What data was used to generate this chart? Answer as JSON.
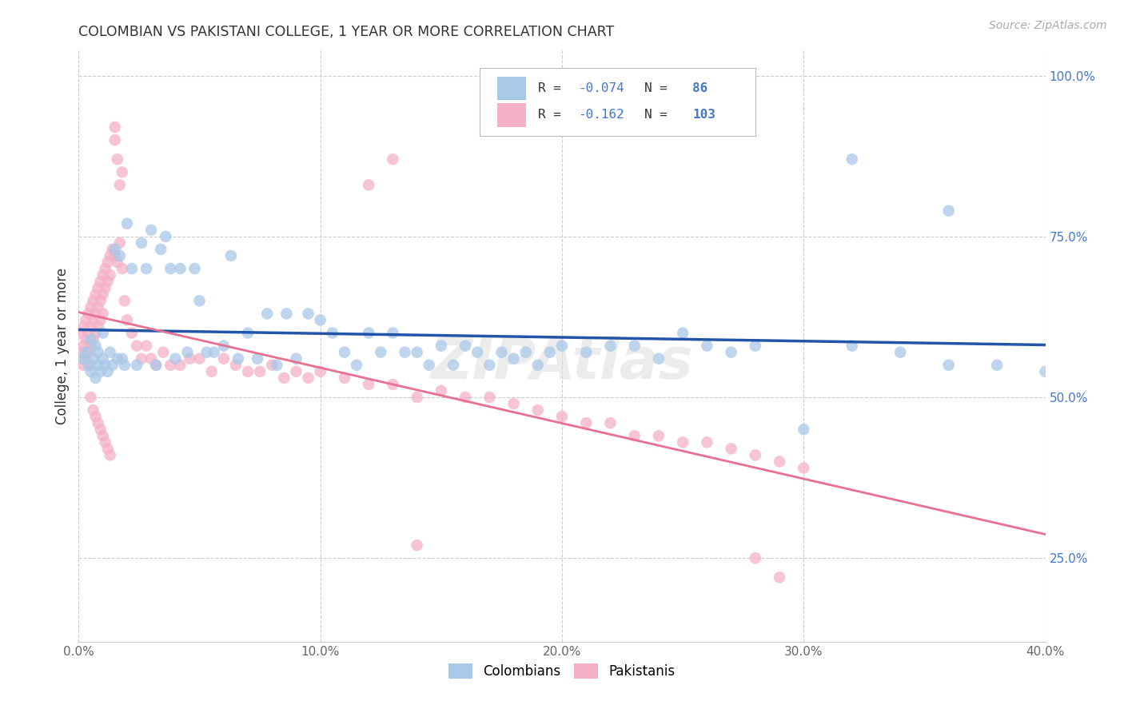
{
  "title": "COLOMBIAN VS PAKISTANI COLLEGE, 1 YEAR OR MORE CORRELATION CHART",
  "source": "Source: ZipAtlas.com",
  "ylabel": "College, 1 year or more",
  "colombian_R": -0.074,
  "colombian_N": 86,
  "pakistani_R": -0.162,
  "pakistani_N": 103,
  "colombian_color": "#a8c8e8",
  "pakistani_color": "#f4b0c8",
  "colombian_line_color": "#2255aa",
  "pakistani_line_color": "#e87090",
  "legend_text_color": "#4477cc",
  "legend_label_color": "#333333",
  "legend_label_colombian": "Colombians",
  "legend_label_pakistani": "Pakistanis",
  "xlim": [
    0.0,
    0.4
  ],
  "ylim": [
    0.12,
    1.04
  ],
  "xtick_vals": [
    0.0,
    0.1,
    0.2,
    0.3,
    0.4
  ],
  "xtick_labels": [
    "0.0%",
    "10.0%",
    "20.0%",
    "30.0%",
    "40.0%"
  ],
  "ytick_vals": [
    0.25,
    0.5,
    0.75,
    1.0
  ],
  "ytick_labels": [
    "25.0%",
    "50.0%",
    "75.0%",
    "100.0%"
  ],
  "colombian_scatter_x": [
    0.002,
    0.003,
    0.004,
    0.005,
    0.005,
    0.006,
    0.007,
    0.007,
    0.008,
    0.008,
    0.009,
    0.01,
    0.01,
    0.011,
    0.012,
    0.013,
    0.014,
    0.015,
    0.016,
    0.017,
    0.018,
    0.019,
    0.02,
    0.022,
    0.024,
    0.026,
    0.028,
    0.03,
    0.032,
    0.034,
    0.036,
    0.038,
    0.04,
    0.042,
    0.045,
    0.048,
    0.05,
    0.053,
    0.056,
    0.06,
    0.063,
    0.066,
    0.07,
    0.074,
    0.078,
    0.082,
    0.086,
    0.09,
    0.095,
    0.1,
    0.105,
    0.11,
    0.115,
    0.12,
    0.125,
    0.13,
    0.135,
    0.14,
    0.145,
    0.15,
    0.155,
    0.16,
    0.165,
    0.17,
    0.175,
    0.18,
    0.185,
    0.19,
    0.195,
    0.2,
    0.21,
    0.22,
    0.23,
    0.24,
    0.25,
    0.26,
    0.27,
    0.28,
    0.3,
    0.32,
    0.34,
    0.36,
    0.38,
    0.4,
    0.32,
    0.36
  ],
  "colombian_scatter_y": [
    0.56,
    0.57,
    0.55,
    0.54,
    0.59,
    0.56,
    0.53,
    0.58,
    0.55,
    0.57,
    0.54,
    0.56,
    0.6,
    0.55,
    0.54,
    0.57,
    0.55,
    0.73,
    0.56,
    0.72,
    0.56,
    0.55,
    0.77,
    0.7,
    0.55,
    0.74,
    0.7,
    0.76,
    0.55,
    0.73,
    0.75,
    0.7,
    0.56,
    0.7,
    0.57,
    0.7,
    0.65,
    0.57,
    0.57,
    0.58,
    0.72,
    0.56,
    0.6,
    0.56,
    0.63,
    0.55,
    0.63,
    0.56,
    0.63,
    0.62,
    0.6,
    0.57,
    0.55,
    0.6,
    0.57,
    0.6,
    0.57,
    0.57,
    0.55,
    0.58,
    0.55,
    0.58,
    0.57,
    0.55,
    0.57,
    0.56,
    0.57,
    0.55,
    0.57,
    0.58,
    0.57,
    0.58,
    0.58,
    0.56,
    0.6,
    0.58,
    0.57,
    0.58,
    0.45,
    0.58,
    0.57,
    0.55,
    0.55,
    0.54,
    0.87,
    0.79
  ],
  "pakistani_scatter_x": [
    0.001,
    0.001,
    0.002,
    0.002,
    0.002,
    0.003,
    0.003,
    0.003,
    0.004,
    0.004,
    0.004,
    0.005,
    0.005,
    0.005,
    0.005,
    0.006,
    0.006,
    0.006,
    0.007,
    0.007,
    0.007,
    0.008,
    0.008,
    0.008,
    0.009,
    0.009,
    0.009,
    0.01,
    0.01,
    0.01,
    0.011,
    0.011,
    0.012,
    0.012,
    0.013,
    0.013,
    0.014,
    0.015,
    0.016,
    0.017,
    0.018,
    0.019,
    0.02,
    0.022,
    0.024,
    0.026,
    0.028,
    0.03,
    0.032,
    0.035,
    0.038,
    0.042,
    0.046,
    0.05,
    0.055,
    0.06,
    0.065,
    0.07,
    0.075,
    0.08,
    0.085,
    0.09,
    0.095,
    0.1,
    0.11,
    0.12,
    0.13,
    0.14,
    0.15,
    0.16,
    0.17,
    0.18,
    0.19,
    0.2,
    0.21,
    0.22,
    0.23,
    0.24,
    0.25,
    0.26,
    0.27,
    0.28,
    0.29,
    0.3,
    0.14,
    0.005,
    0.006,
    0.007,
    0.008,
    0.009,
    0.01,
    0.011,
    0.012,
    0.013,
    0.015,
    0.015,
    0.016,
    0.017,
    0.018,
    0.12,
    0.13,
    0.28,
    0.29
  ],
  "pakistani_scatter_y": [
    0.6,
    0.57,
    0.61,
    0.58,
    0.55,
    0.62,
    0.59,
    0.56,
    0.63,
    0.6,
    0.57,
    0.64,
    0.61,
    0.58,
    0.55,
    0.65,
    0.62,
    0.59,
    0.66,
    0.63,
    0.6,
    0.67,
    0.64,
    0.61,
    0.68,
    0.65,
    0.62,
    0.69,
    0.66,
    0.63,
    0.7,
    0.67,
    0.71,
    0.68,
    0.72,
    0.69,
    0.73,
    0.72,
    0.71,
    0.74,
    0.7,
    0.65,
    0.62,
    0.6,
    0.58,
    0.56,
    0.58,
    0.56,
    0.55,
    0.57,
    0.55,
    0.55,
    0.56,
    0.56,
    0.54,
    0.56,
    0.55,
    0.54,
    0.54,
    0.55,
    0.53,
    0.54,
    0.53,
    0.54,
    0.53,
    0.52,
    0.52,
    0.5,
    0.51,
    0.5,
    0.5,
    0.49,
    0.48,
    0.47,
    0.46,
    0.46,
    0.44,
    0.44,
    0.43,
    0.43,
    0.42,
    0.41,
    0.4,
    0.39,
    0.27,
    0.5,
    0.48,
    0.47,
    0.46,
    0.45,
    0.44,
    0.43,
    0.42,
    0.41,
    0.9,
    0.92,
    0.87,
    0.83,
    0.85,
    0.83,
    0.87,
    0.25,
    0.22
  ]
}
